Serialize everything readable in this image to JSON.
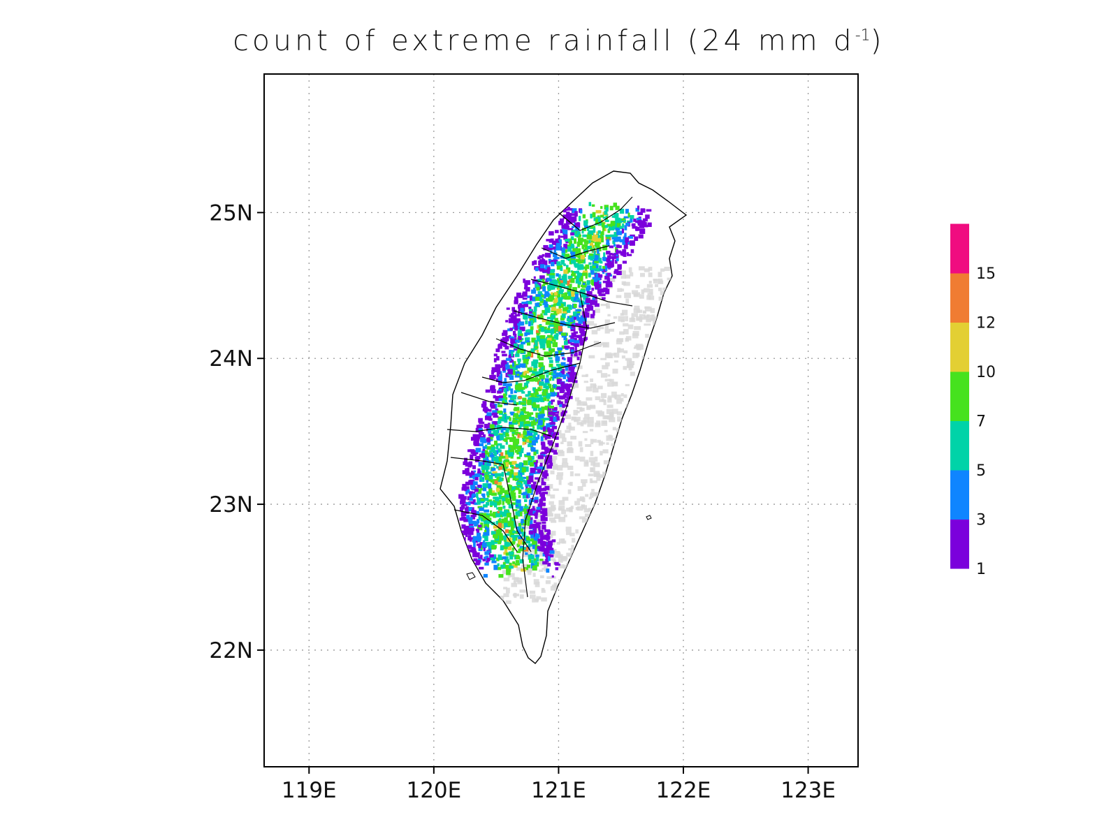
{
  "title": {
    "main": "count of extreme rainfall (24 mm d",
    "sup": "-1",
    "close": ")"
  },
  "map": {
    "region": "Taiwan",
    "lon_range": [
      118.64,
      123.4
    ],
    "lat_range": [
      21.2,
      25.95
    ],
    "x_ticks": [
      {
        "value": 119,
        "label": "119E"
      },
      {
        "value": 120,
        "label": "120E"
      },
      {
        "value": 121,
        "label": "121E"
      },
      {
        "value": 122,
        "label": "122E"
      },
      {
        "value": 123,
        "label": "123E"
      }
    ],
    "y_ticks": [
      {
        "value": 22,
        "label": "22N"
      },
      {
        "value": 23,
        "label": "23N"
      },
      {
        "value": 24,
        "label": "24N"
      },
      {
        "value": 25,
        "label": "25N"
      }
    ],
    "grid": "dotted",
    "terrain_color": "#d8d8d8"
  },
  "colorbar": {
    "colors": [
      "#7b00dc",
      "#0f85ff",
      "#00d3a8",
      "#46e21e",
      "#e3cf33",
      "#f07c32",
      "#f00c80"
    ],
    "labels": [
      "1",
      "3",
      "5",
      "7",
      "10",
      "12",
      "15"
    ]
  }
}
